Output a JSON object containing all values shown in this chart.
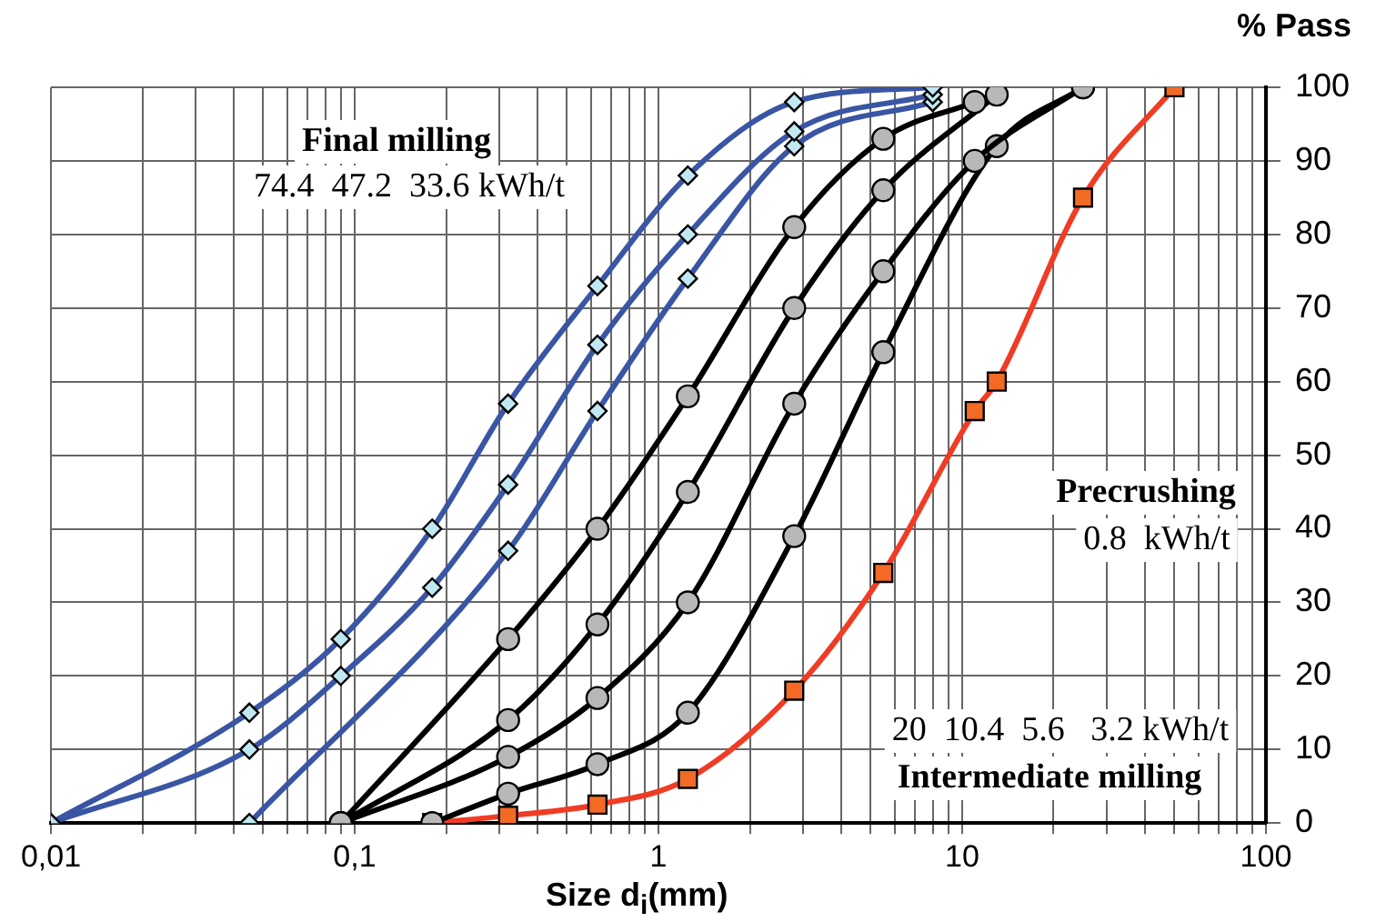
{
  "chart_data": {
    "type": "line",
    "xlabel": "Size d$_{i}$(mm)",
    "ylabel": "% Pass",
    "log": "x",
    "xlim": [
      0.01,
      100
    ],
    "ylim": [
      0,
      100
    ],
    "xticks": [
      {
        "value": 0.01,
        "label": "0,01"
      },
      {
        "value": 0.02,
        "label": null
      },
      {
        "value": 0.03,
        "label": null
      },
      {
        "value": 0.04,
        "label": null
      },
      {
        "value": 0.05,
        "label": null
      },
      {
        "value": 0.06,
        "label": null
      },
      {
        "value": 0.07,
        "label": null
      },
      {
        "value": 0.08,
        "label": null
      },
      {
        "value": 0.09,
        "label": null
      },
      {
        "value": 0.1,
        "label": "0,1"
      },
      {
        "value": 0.2,
        "label": null
      },
      {
        "value": 0.3,
        "label": null
      },
      {
        "value": 0.4,
        "label": null
      },
      {
        "value": 0.5,
        "label": null
      },
      {
        "value": 0.6,
        "label": null
      },
      {
        "value": 0.7,
        "label": null
      },
      {
        "value": 0.8,
        "label": null
      },
      {
        "value": 0.9,
        "label": null
      },
      1,
      {
        "value": 2,
        "label": null
      },
      {
        "value": 3,
        "label": null
      },
      {
        "value": 4,
        "label": null
      },
      {
        "value": 5,
        "label": null
      },
      {
        "value": 6,
        "label": null
      },
      {
        "value": 7,
        "label": null
      },
      {
        "value": 8,
        "label": null
      },
      {
        "value": 9,
        "label": null
      },
      10,
      {
        "value": 20,
        "label": null
      },
      {
        "value": 30,
        "label": null
      },
      {
        "value": 40,
        "label": null
      },
      {
        "value": 50,
        "label": null
      },
      {
        "value": 60,
        "label": null
      },
      {
        "value": 70,
        "label": null
      },
      {
        "value": 80,
        "label": null
      },
      {
        "value": 90,
        "label": null
      },
      100
    ],
    "yticks": [
      0,
      10,
      20,
      30,
      40,
      50,
      60,
      70,
      80,
      90,
      100
    ],
    "grid": true,
    "legend": false,
    "line_style": "solid",
    "series": [
      {
        "color": "#3a55a4",
        "marker": "diamond",
        "x": [
          0.01,
          0.045,
          0.09,
          0.18,
          0.32,
          0.63,
          1.25,
          2.8,
          8
        ],
        "values": [
          0,
          15,
          25,
          40,
          57,
          73,
          88,
          98,
          100
        ]
      },
      {
        "color": "#3a55a4",
        "marker": "diamond",
        "x": [
          0.01,
          0.045,
          0.09,
          0.18,
          0.32,
          0.63,
          1.25,
          2.8,
          8
        ],
        "values": [
          0,
          10,
          20,
          32,
          46,
          65,
          80,
          94,
          99
        ]
      },
      {
        "color": "#3a55a4",
        "marker": "diamond",
        "x": [
          0.045,
          0.32,
          0.63,
          1.25,
          2.8,
          8
        ],
        "values": [
          0,
          37,
          56,
          74,
          92,
          98
        ]
      },
      {
        "color": "#000000",
        "marker": "circle",
        "x": [
          0.09,
          0.32,
          0.63,
          1.25,
          2.8,
          5.5,
          11
        ],
        "values": [
          0,
          25,
          40,
          58,
          81,
          93,
          98
        ]
      },
      {
        "color": "#000000",
        "marker": "circle",
        "x": [
          0.09,
          0.32,
          0.63,
          1.25,
          2.8,
          5.5,
          13
        ],
        "values": [
          0,
          14,
          27,
          45,
          70,
          86,
          99
        ]
      },
      {
        "color": "#000000",
        "marker": "circle",
        "x": [
          0.09,
          0.32,
          0.63,
          1.25,
          2.8,
          5.5,
          11,
          25
        ],
        "values": [
          0,
          9,
          17,
          30,
          57,
          75,
          90,
          100
        ]
      },
      {
        "color": "#000000",
        "marker": "circle",
        "x": [
          0.18,
          0.32,
          0.63,
          1.25,
          2.8,
          5.5,
          13,
          25
        ],
        "values": [
          0,
          4,
          8,
          15,
          39,
          64,
          92,
          100
        ]
      },
      {
        "color": "#f03c24",
        "marker": "square",
        "x": [
          0.18,
          0.32,
          0.63,
          1.25,
          2.8,
          5.5,
          11,
          13,
          25,
          50
        ],
        "values": [
          0,
          1,
          2.5,
          6,
          18,
          34,
          56,
          60,
          85,
          100
        ]
      }
    ],
    "annotations": [
      "Final milling",
      "74.4  47.2  33.6 kWh/t",
      "Precrushing",
      "0.8  kWh/t",
      "20  10.4  5.6   3.2 kWh/t",
      "Intermediate milling"
    ]
  }
}
